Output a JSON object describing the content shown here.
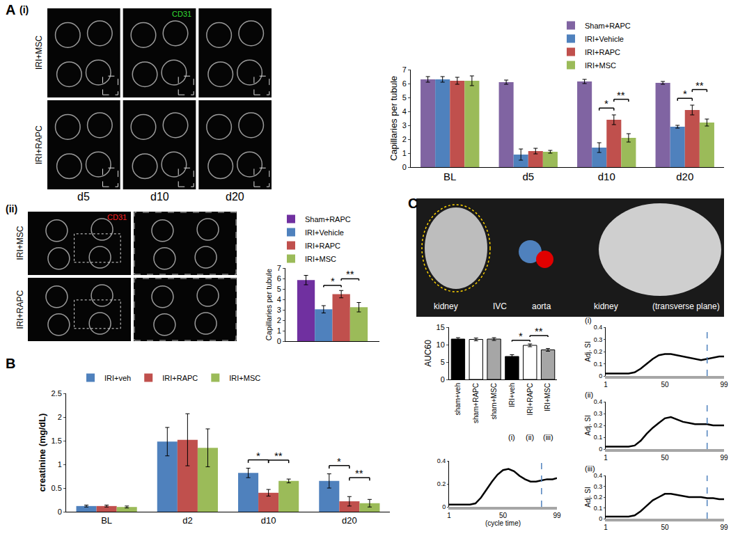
{
  "figure_labels": [
    "A",
    "(i)",
    "(ii)",
    "B",
    "C"
  ],
  "micrographs": [
    {
      "stain": "CD31",
      "color": "#33dd33",
      "rows": [
        "IRI+MSC",
        "IRI+RAPC"
      ],
      "columns": [
        "d5",
        "d10",
        "d20"
      ]
    },
    {
      "stain": "CD31",
      "color": "#ff2020",
      "rows": [
        "IRI+MSC",
        "IRI+RAPC"
      ]
    }
  ],
  "mri": {
    "labels": [
      "kidney",
      "IVC",
      "aorta",
      "kidney",
      "(transverse plane)"
    ]
  },
  "chart_data": [
    {
      "type": "bar",
      "categories": [
        "BL",
        "d5",
        "d10",
        "d20"
      ],
      "y_label": "Capillaries per tubule",
      "ylim": [
        0,
        7
      ],
      "yticks": [
        0,
        1,
        2,
        3,
        4,
        5,
        6,
        7
      ],
      "grid": false,
      "legend": "top right",
      "series": [
        {
          "name": "Sham+RAPC",
          "color": "#8064a2",
          "values": [
            6.3,
            6.1,
            6.15,
            6.05
          ],
          "errors": [
            0.2,
            0.15,
            0.15,
            0.1
          ]
        },
        {
          "name": "IRI+Vehicle",
          "color": "#4f81bd",
          "values": [
            6.3,
            0.9,
            1.4,
            2.9
          ],
          "errors": [
            0.2,
            0.4,
            0.35,
            0.1
          ]
        },
        {
          "name": "IRI+RAPC",
          "color": "#c0504d",
          "values": [
            6.2,
            1.15,
            3.4,
            4.1
          ],
          "errors": [
            0.25,
            0.2,
            0.35,
            0.35
          ]
        },
        {
          "name": "IRI+MSC",
          "color": "#9bbb59",
          "values": [
            6.2,
            1.1,
            2.1,
            3.2
          ],
          "errors": [
            0.35,
            0.1,
            0.3,
            0.25
          ]
        }
      ],
      "annotations": [
        {
          "text": "*",
          "category": "d10",
          "between": [
            "IRI+Vehicle",
            "IRI+RAPC"
          ]
        },
        {
          "text": "**",
          "category": "d10",
          "between": [
            "IRI+RAPC",
            "IRI+MSC"
          ]
        },
        {
          "text": "*",
          "category": "d20",
          "between": [
            "IRI+Vehicle",
            "IRI+RAPC"
          ]
        },
        {
          "text": "**",
          "category": "d20",
          "between": [
            "IRI+RAPC",
            "IRI+MSC"
          ]
        }
      ]
    },
    {
      "type": "bar",
      "categories": [
        null
      ],
      "y_label": "Capillaries per tubule",
      "ylim": [
        0,
        7
      ],
      "yticks": [
        0,
        1,
        2,
        3,
        4,
        5,
        6,
        7
      ],
      "grid": false,
      "legend": "top left",
      "series": [
        {
          "name": "Sham+RAPC",
          "color": "#7030a0",
          "values": [
            5.85
          ],
          "errors": [
            0.45
          ]
        },
        {
          "name": "IRI+Vehicle",
          "color": "#4f81bd",
          "values": [
            3.05
          ],
          "errors": [
            0.35
          ]
        },
        {
          "name": "IRI+RAPC",
          "color": "#c0504d",
          "values": [
            4.5
          ],
          "errors": [
            0.35
          ]
        },
        {
          "name": "IRI+MSC",
          "color": "#9bbb59",
          "values": [
            3.25
          ],
          "errors": [
            0.45
          ]
        }
      ],
      "annotations": [
        {
          "text": "*",
          "between": [
            "IRI+Vehicle",
            "IRI+RAPC"
          ]
        },
        {
          "text": "**",
          "between": [
            "IRI+RAPC",
            "IRI+MSC"
          ]
        }
      ]
    },
    {
      "type": "bar",
      "categories": [
        "BL",
        "d2",
        "d10",
        "d20"
      ],
      "y_label": "creatinine (mg/dL)",
      "ylim": [
        0,
        2.5
      ],
      "yticks": [
        0,
        0.5,
        1,
        1.5,
        2,
        2.5
      ],
      "grid": false,
      "legend": "top",
      "series": [
        {
          "name": "IRI+veh",
          "color": "#4f81bd",
          "values": [
            0.12,
            1.48,
            0.82,
            0.65
          ],
          "errors": [
            0.02,
            0.3,
            0.1,
            0.15
          ]
        },
        {
          "name": "IRI+RAPC",
          "color": "#c0504d",
          "values": [
            0.12,
            1.52,
            0.4,
            0.22
          ],
          "errors": [
            0.02,
            0.55,
            0.07,
            0.1
          ]
        },
        {
          "name": "IRI+MSC",
          "color": "#9bbb59",
          "values": [
            0.1,
            1.35,
            0.65,
            0.18
          ],
          "errors": [
            0.02,
            0.4,
            0.04,
            0.08
          ]
        }
      ],
      "annotations": [
        {
          "text": "*",
          "category": "d10",
          "between": [
            "IRI+veh",
            "IRI+RAPC"
          ]
        },
        {
          "text": "**",
          "category": "d10",
          "between": [
            "IRI+RAPC",
            "IRI+MSC"
          ]
        },
        {
          "text": "*",
          "category": "d20",
          "between": [
            "IRI+veh",
            "IRI+RAPC"
          ]
        },
        {
          "text": "**",
          "category": "d20",
          "between": [
            "IRI+RAPC",
            "IRI+MSC"
          ]
        }
      ]
    },
    {
      "type": "bar",
      "categories": [
        "sham+veh",
        "sham+RAPC",
        "sham+MSC",
        "IRI+veh",
        "IRI+RAPC",
        "IRI+MSC"
      ],
      "values": [
        11.6,
        11.5,
        11.6,
        6.6,
        9.8,
        8.5
      ],
      "errors": [
        0.4,
        0.4,
        0.4,
        0.5,
        0.4,
        0.4
      ],
      "colors": [
        "#000000",
        "#ffffff",
        "#a6a6a6",
        "#000000",
        "#ffffff",
        "#a6a6a6"
      ],
      "sub_labels": [
        null,
        null,
        null,
        "(i)",
        "(ii)",
        "(iii)"
      ],
      "y_label": "AUC60",
      "ylim": [
        0,
        15
      ],
      "yticks": [
        0,
        5,
        10,
        15
      ],
      "grid": false,
      "annotations": [
        {
          "text": "*",
          "between": [
            "IRI+veh",
            "IRI+RAPC"
          ]
        },
        {
          "text": "**",
          "between": [
            "IRI+RAPC",
            "IRI+MSC"
          ]
        }
      ]
    },
    {
      "type": "line",
      "x": [
        1,
        10,
        20,
        25,
        30,
        35,
        40,
        45,
        50,
        55,
        60,
        65,
        70,
        75,
        80,
        85,
        90,
        95,
        99
      ],
      "values": [
        0.02,
        0.02,
        0.02,
        0.03,
        0.08,
        0.15,
        0.22,
        0.28,
        0.32,
        0.33,
        0.31,
        0.27,
        0.24,
        0.22,
        0.22,
        0.23,
        0.24,
        0.24,
        0.25
      ],
      "color": "#000000",
      "dashed_x": 85,
      "x_label": "(cycle time)",
      "xlim": [
        1,
        99
      ],
      "xticks": [
        1,
        50,
        99
      ],
      "ylim": [
        0,
        0.4
      ],
      "yticks": [
        0,
        0.2,
        0.4
      ],
      "grid": false
    },
    {
      "type": "line",
      "title": "(i)",
      "x": [
        1,
        10,
        20,
        25,
        30,
        35,
        40,
        45,
        50,
        55,
        60,
        65,
        70,
        75,
        80,
        85,
        90,
        95,
        99
      ],
      "values": [
        0.02,
        0.02,
        0.02,
        0.03,
        0.06,
        0.1,
        0.14,
        0.17,
        0.18,
        0.18,
        0.17,
        0.16,
        0.15,
        0.14,
        0.13,
        0.14,
        0.15,
        0.16,
        0.16
      ],
      "color": "#000000",
      "dashed_x": 85,
      "y_label": "Adj. SI",
      "xlim": [
        1,
        99
      ],
      "xticks": [
        1,
        50,
        99
      ],
      "ylim": [
        0,
        0.4
      ],
      "yticks": [
        0,
        0.1,
        0.2,
        0.3,
        0.4
      ],
      "grid": false
    },
    {
      "type": "line",
      "title": "(ii)",
      "x": [
        1,
        10,
        20,
        25,
        30,
        35,
        40,
        45,
        50,
        55,
        60,
        65,
        70,
        75,
        80,
        85,
        90,
        95,
        99
      ],
      "values": [
        0.02,
        0.02,
        0.02,
        0.03,
        0.07,
        0.13,
        0.18,
        0.22,
        0.26,
        0.27,
        0.25,
        0.23,
        0.22,
        0.21,
        0.21,
        0.21,
        0.2,
        0.2,
        0.2
      ],
      "color": "#000000",
      "dashed_x": 85,
      "y_label": "Adj. SI",
      "xlim": [
        1,
        99
      ],
      "xticks": [
        1,
        50,
        99
      ],
      "ylim": [
        0,
        0.4
      ],
      "yticks": [
        0,
        0.1,
        0.2,
        0.3,
        0.4
      ],
      "grid": false
    },
    {
      "type": "line",
      "title": "(iii)",
      "x": [
        1,
        10,
        20,
        25,
        30,
        35,
        40,
        45,
        50,
        55,
        60,
        65,
        70,
        75,
        80,
        85,
        90,
        95,
        99
      ],
      "values": [
        0.02,
        0.02,
        0.02,
        0.03,
        0.07,
        0.12,
        0.17,
        0.2,
        0.23,
        0.23,
        0.22,
        0.21,
        0.2,
        0.2,
        0.2,
        0.19,
        0.19,
        0.18,
        0.18
      ],
      "color": "#000000",
      "dashed_x": 85,
      "y_label": "Adj. SI",
      "xlim": [
        1,
        99
      ],
      "xticks": [
        1,
        50,
        99
      ],
      "ylim": [
        0,
        0.4
      ],
      "yticks": [
        0,
        0.1,
        0.2,
        0.3,
        0.4
      ],
      "grid": false
    }
  ]
}
